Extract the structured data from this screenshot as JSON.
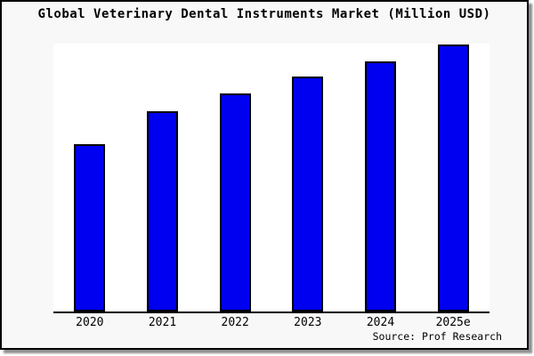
{
  "title": "Global Veterinary Dental Instruments Market (Million USD)",
  "source": "Source: Prof Research",
  "colors": {
    "bar_fill": "#0000f0",
    "bar_edge": "#000000",
    "canvas_bg": "#f8f8f8",
    "plot_bg": "#ffffff"
  },
  "chart_data": {
    "type": "bar",
    "title": "Global Veterinary Dental Instruments Market (Million USD)",
    "categories": [
      "2020",
      "2021",
      "2022",
      "2023",
      "2024",
      "2025e"
    ],
    "values": [
      188,
      225,
      245,
      264,
      281,
      300
    ],
    "xlabel": "",
    "ylabel": "",
    "ylim": [
      0,
      301
    ],
    "y_axis_labeled": false,
    "grid": false,
    "legend": false,
    "note_values_are_relative": true
  }
}
